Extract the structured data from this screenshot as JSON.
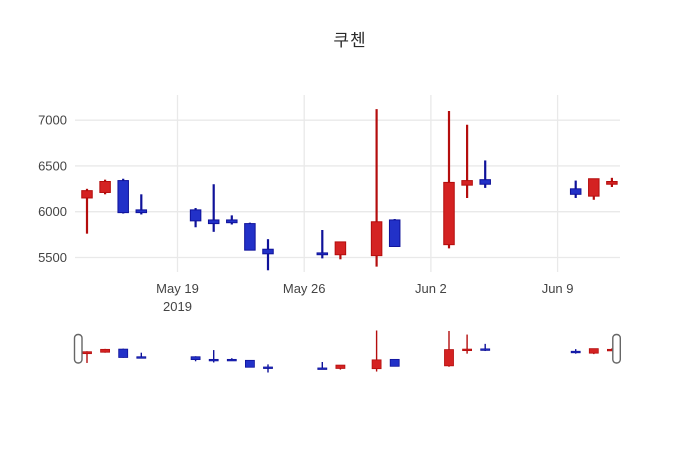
{
  "chart_data": {
    "type": "candlestick",
    "title": "쿠첸",
    "xlabel": "",
    "ylabel": "",
    "legend": "none",
    "grid": true,
    "y_ticks": [
      5500,
      6000,
      6500,
      7000
    ],
    "ylim": [
      5280,
      7290
    ],
    "x_ticks": [
      {
        "label": "May 19",
        "sublabel": "2019",
        "date": "2019-05-19"
      },
      {
        "label": "May 26",
        "sublabel": "",
        "date": "2019-05-26"
      },
      {
        "label": "Jun 2",
        "sublabel": "",
        "date": "2019-06-02"
      },
      {
        "label": "Jun 9",
        "sublabel": "",
        "date": "2019-06-09"
      }
    ],
    "colors": {
      "increasing_fill": "#d42222",
      "increasing_line": "#b40d0d",
      "decreasing_fill": "#2231c8",
      "decreasing_line": "#0f129a",
      "grid": "#e9e9e9",
      "tick_text": "#444444",
      "handle_border": "#666666",
      "background": "#ffffff"
    },
    "rangeslider": true,
    "candles": [
      {
        "date": "2019-05-14",
        "open": 6150,
        "high": 6250,
        "low": 5760,
        "close": 6230
      },
      {
        "date": "2019-05-15",
        "open": 6210,
        "high": 6350,
        "low": 6190,
        "close": 6330
      },
      {
        "date": "2019-05-16",
        "open": 6340,
        "high": 6360,
        "low": 5980,
        "close": 5990
      },
      {
        "date": "2019-05-17",
        "open": 6020,
        "high": 6190,
        "low": 5970,
        "close": 5990
      },
      {
        "date": "2019-05-20",
        "open": 6020,
        "high": 6040,
        "low": 5830,
        "close": 5900
      },
      {
        "date": "2019-05-21",
        "open": 5910,
        "high": 6300,
        "low": 5780,
        "close": 5870
      },
      {
        "date": "2019-05-22",
        "open": 5910,
        "high": 5960,
        "low": 5860,
        "close": 5880
      },
      {
        "date": "2019-05-23",
        "open": 5870,
        "high": 5880,
        "low": 5580,
        "close": 5580
      },
      {
        "date": "2019-05-24",
        "open": 5590,
        "high": 5700,
        "low": 5360,
        "close": 5540
      },
      {
        "date": "2019-05-27",
        "open": 5550,
        "high": 5800,
        "low": 5490,
        "close": 5530
      },
      {
        "date": "2019-05-28",
        "open": 5530,
        "high": 5670,
        "low": 5480,
        "close": 5670
      },
      {
        "date": "2019-05-30",
        "open": 5520,
        "high": 7120,
        "low": 5400,
        "close": 5890
      },
      {
        "date": "2019-05-31",
        "open": 5910,
        "high": 5920,
        "low": 5620,
        "close": 5620
      },
      {
        "date": "2019-06-03",
        "open": 5640,
        "high": 7100,
        "low": 5600,
        "close": 6320
      },
      {
        "date": "2019-06-04",
        "open": 6290,
        "high": 6950,
        "low": 6150,
        "close": 6340
      },
      {
        "date": "2019-06-05",
        "open": 6350,
        "high": 6560,
        "low": 6260,
        "close": 6300
      },
      {
        "date": "2019-06-10",
        "open": 6250,
        "high": 6340,
        "low": 6150,
        "close": 6190
      },
      {
        "date": "2019-06-11",
        "open": 6170,
        "high": 6360,
        "low": 6130,
        "close": 6360
      },
      {
        "date": "2019-06-12",
        "open": 6300,
        "high": 6370,
        "low": 6270,
        "close": 6330
      }
    ]
  }
}
